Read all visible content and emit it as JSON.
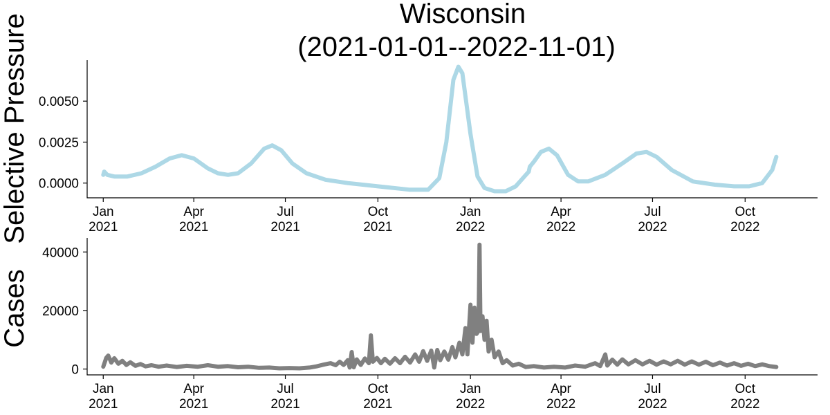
{
  "chart_data": {
    "title_lines": [
      "Wisconsin",
      "(2021-01-01--2022-11-01)"
    ],
    "x_tick_labels": [
      [
        "Jan",
        "2021"
      ],
      [
        "Apr",
        "2021"
      ],
      [
        "Jul",
        "2021"
      ],
      [
        "Oct",
        "2021"
      ],
      [
        "Jan",
        "2022"
      ],
      [
        "Apr",
        "2022"
      ],
      [
        "Jul",
        "2022"
      ],
      [
        "Oct",
        "2022"
      ]
    ],
    "x_tick_dates": [
      "2021-01-01",
      "2021-04-01",
      "2021-07-01",
      "2021-10-01",
      "2022-01-01",
      "2022-04-01",
      "2022-07-01",
      "2022-10-01"
    ],
    "xlim": [
      "2020-12-16",
      "2022-12-12"
    ],
    "charts": [
      {
        "type": "line",
        "ylabel": "Selective Pressure",
        "ylim": [
          -0.0009,
          0.0075
        ],
        "y_ticks": [
          0.0,
          0.0025,
          0.005
        ],
        "y_tick_labels": [
          "0.0000",
          "0.0025",
          "0.0050"
        ],
        "series": [
          {
            "color": "#add8e6",
            "points": [
              [
                "2021-01-01",
                0.0005
              ],
              [
                "2021-01-02",
                0.0007
              ],
              [
                "2021-01-05",
                0.0005
              ],
              [
                "2021-01-12",
                0.0004
              ],
              [
                "2021-01-25",
                0.0004
              ],
              [
                "2021-02-08",
                0.0006
              ],
              [
                "2021-02-22",
                0.001
              ],
              [
                "2021-03-08",
                0.0015
              ],
              [
                "2021-03-20",
                0.0017
              ],
              [
                "2021-04-01",
                0.0015
              ],
              [
                "2021-04-15",
                0.0009
              ],
              [
                "2021-04-25",
                0.0006
              ],
              [
                "2021-05-05",
                0.0005
              ],
              [
                "2021-05-15",
                0.0006
              ],
              [
                "2021-05-28",
                0.0012
              ],
              [
                "2021-06-10",
                0.0021
              ],
              [
                "2021-06-18",
                0.0023
              ],
              [
                "2021-06-27",
                0.002
              ],
              [
                "2021-07-08",
                0.0012
              ],
              [
                "2021-07-22",
                0.0006
              ],
              [
                "2021-08-10",
                0.0002
              ],
              [
                "2021-09-01",
                0.0
              ],
              [
                "2021-10-01",
                -0.0002
              ],
              [
                "2021-11-01",
                -0.0004
              ],
              [
                "2021-11-20",
                -0.0004
              ],
              [
                "2021-12-01",
                0.0003
              ],
              [
                "2021-12-08",
                0.0025
              ],
              [
                "2021-12-15",
                0.0063
              ],
              [
                "2021-12-20",
                0.0071
              ],
              [
                "2021-12-24",
                0.0067
              ],
              [
                "2022-01-01",
                0.003
              ],
              [
                "2022-01-08",
                0.0004
              ],
              [
                "2022-01-15",
                -0.0003
              ],
              [
                "2022-01-25",
                -0.0005
              ],
              [
                "2022-02-05",
                -0.0005
              ],
              [
                "2022-02-15",
                -0.0002
              ],
              [
                "2022-02-28",
                0.0007
              ],
              [
                "2022-03-01",
                0.001
              ],
              [
                "2022-03-05",
                0.0013
              ],
              [
                "2022-03-12",
                0.0019
              ],
              [
                "2022-03-20",
                0.0021
              ],
              [
                "2022-03-28",
                0.0017
              ],
              [
                "2022-04-08",
                0.0005
              ],
              [
                "2022-04-18",
                0.0001
              ],
              [
                "2022-04-28",
                0.0001
              ],
              [
                "2022-05-15",
                0.0005
              ],
              [
                "2022-06-01",
                0.0012
              ],
              [
                "2022-06-15",
                0.0018
              ],
              [
                "2022-06-25",
                0.0019
              ],
              [
                "2022-07-05",
                0.0016
              ],
              [
                "2022-07-20",
                0.0008
              ],
              [
                "2022-08-10",
                0.0001
              ],
              [
                "2022-09-01",
                -0.0001
              ],
              [
                "2022-09-20",
                -0.0002
              ],
              [
                "2022-10-05",
                -0.0002
              ],
              [
                "2022-10-18",
                0.0
              ],
              [
                "2022-10-28",
                0.0008
              ],
              [
                "2022-11-01",
                0.0016
              ]
            ]
          }
        ]
      },
      {
        "type": "line",
        "ylabel": "Cases",
        "ylim": [
          -2000,
          44800
        ],
        "y_ticks": [
          0,
          20000,
          40000
        ],
        "y_tick_labels": [
          "0",
          "20000",
          "40000"
        ],
        "series": [
          {
            "color": "#808080",
            "points": [
              [
                "2021-01-01",
                800
              ],
              [
                "2021-01-04",
                3800
              ],
              [
                "2021-01-06",
                4600
              ],
              [
                "2021-01-09",
                2200
              ],
              [
                "2021-01-12",
                3700
              ],
              [
                "2021-01-16",
                1800
              ],
              [
                "2021-01-20",
                2800
              ],
              [
                "2021-01-24",
                1400
              ],
              [
                "2021-01-28",
                2300
              ],
              [
                "2021-02-02",
                1100
              ],
              [
                "2021-02-07",
                1700
              ],
              [
                "2021-02-12",
                900
              ],
              [
                "2021-02-18",
                1300
              ],
              [
                "2021-02-25",
                800
              ],
              [
                "2021-03-05",
                1200
              ],
              [
                "2021-03-15",
                700
              ],
              [
                "2021-03-25",
                1100
              ],
              [
                "2021-04-05",
                800
              ],
              [
                "2021-04-15",
                1300
              ],
              [
                "2021-04-25",
                800
              ],
              [
                "2021-05-05",
                1000
              ],
              [
                "2021-05-15",
                600
              ],
              [
                "2021-05-25",
                800
              ],
              [
                "2021-06-05",
                400
              ],
              [
                "2021-06-15",
                500
              ],
              [
                "2021-06-25",
                250
              ],
              [
                "2021-07-05",
                350
              ],
              [
                "2021-07-15",
                250
              ],
              [
                "2021-07-25",
                500
              ],
              [
                "2021-08-01",
                900
              ],
              [
                "2021-08-08",
                1500
              ],
              [
                "2021-08-15",
                2000
              ],
              [
                "2021-08-20",
                1300
              ],
              [
                "2021-08-24",
                2500
              ],
              [
                "2021-08-28",
                1400
              ],
              [
                "2021-09-01",
                3000
              ],
              [
                "2021-09-03",
                500
              ],
              [
                "2021-09-05",
                5800
              ],
              [
                "2021-09-07",
                600
              ],
              [
                "2021-09-10",
                3300
              ],
              [
                "2021-09-14",
                1400
              ],
              [
                "2021-09-18",
                3600
              ],
              [
                "2021-09-22",
                2000
              ],
              [
                "2021-09-24",
                11500
              ],
              [
                "2021-09-26",
                2500
              ],
              [
                "2021-09-30",
                3800
              ],
              [
                "2021-10-04",
                2000
              ],
              [
                "2021-10-08",
                3500
              ],
              [
                "2021-10-13",
                1800
              ],
              [
                "2021-10-18",
                3700
              ],
              [
                "2021-10-23",
                2000
              ],
              [
                "2021-10-28",
                4200
              ],
              [
                "2021-11-02",
                2200
              ],
              [
                "2021-11-07",
                5000
              ],
              [
                "2021-11-11",
                2500
              ],
              [
                "2021-11-15",
                6100
              ],
              [
                "2021-11-19",
                2800
              ],
              [
                "2021-11-23",
                6300
              ],
              [
                "2021-11-26",
                500
              ],
              [
                "2021-11-29",
                6500
              ],
              [
                "2021-12-02",
                3000
              ],
              [
                "2021-12-06",
                6000
              ],
              [
                "2021-12-10",
                3200
              ],
              [
                "2021-12-14",
                7500
              ],
              [
                "2021-12-17",
                4000
              ],
              [
                "2021-12-21",
                9000
              ],
              [
                "2021-12-24",
                5000
              ],
              [
                "2021-12-27",
                14000
              ],
              [
                "2021-12-29",
                5000
              ],
              [
                "2022-01-01",
                22000
              ],
              [
                "2022-01-03",
                9000
              ],
              [
                "2022-01-05",
                21000
              ],
              [
                "2022-01-07",
                12000
              ],
              [
                "2022-01-09",
                13000
              ],
              [
                "2022-01-10",
                42500
              ],
              [
                "2022-01-11",
                13000
              ],
              [
                "2022-01-13",
                18000
              ],
              [
                "2022-01-15",
                10000
              ],
              [
                "2022-01-17",
                16500
              ],
              [
                "2022-01-19",
                6000
              ],
              [
                "2022-01-22",
                10000
              ],
              [
                "2022-01-25",
                4000
              ],
              [
                "2022-01-29",
                6000
              ],
              [
                "2022-02-02",
                2000
              ],
              [
                "2022-02-06",
                3000
              ],
              [
                "2022-02-12",
                1200
              ],
              [
                "2022-02-18",
                1800
              ],
              [
                "2022-02-25",
                700
              ],
              [
                "2022-03-05",
                1000
              ],
              [
                "2022-03-15",
                500
              ],
              [
                "2022-03-25",
                800
              ],
              [
                "2022-04-05",
                500
              ],
              [
                "2022-04-15",
                1200
              ],
              [
                "2022-04-25",
                800
              ],
              [
                "2022-05-05",
                2000
              ],
              [
                "2022-05-10",
                1000
              ],
              [
                "2022-05-15",
                5000
              ],
              [
                "2022-05-17",
                1200
              ],
              [
                "2022-05-22",
                3200
              ],
              [
                "2022-05-27",
                1500
              ],
              [
                "2022-06-01",
                3300
              ],
              [
                "2022-06-07",
                1600
              ],
              [
                "2022-06-14",
                3000
              ],
              [
                "2022-06-21",
                1600
              ],
              [
                "2022-06-28",
                2800
              ],
              [
                "2022-07-05",
                1500
              ],
              [
                "2022-07-12",
                2600
              ],
              [
                "2022-07-19",
                1600
              ],
              [
                "2022-07-26",
                2800
              ],
              [
                "2022-08-02",
                1500
              ],
              [
                "2022-08-09",
                2600
              ],
              [
                "2022-08-16",
                1500
              ],
              [
                "2022-08-23",
                2500
              ],
              [
                "2022-08-30",
                1300
              ],
              [
                "2022-09-06",
                2200
              ],
              [
                "2022-09-13",
                1200
              ],
              [
                "2022-09-20",
                2000
              ],
              [
                "2022-09-27",
                1100
              ],
              [
                "2022-10-04",
                1800
              ],
              [
                "2022-10-11",
                1000
              ],
              [
                "2022-10-18",
                1600
              ],
              [
                "2022-10-25",
                1000
              ],
              [
                "2022-11-01",
                700
              ]
            ]
          }
        ]
      }
    ]
  }
}
